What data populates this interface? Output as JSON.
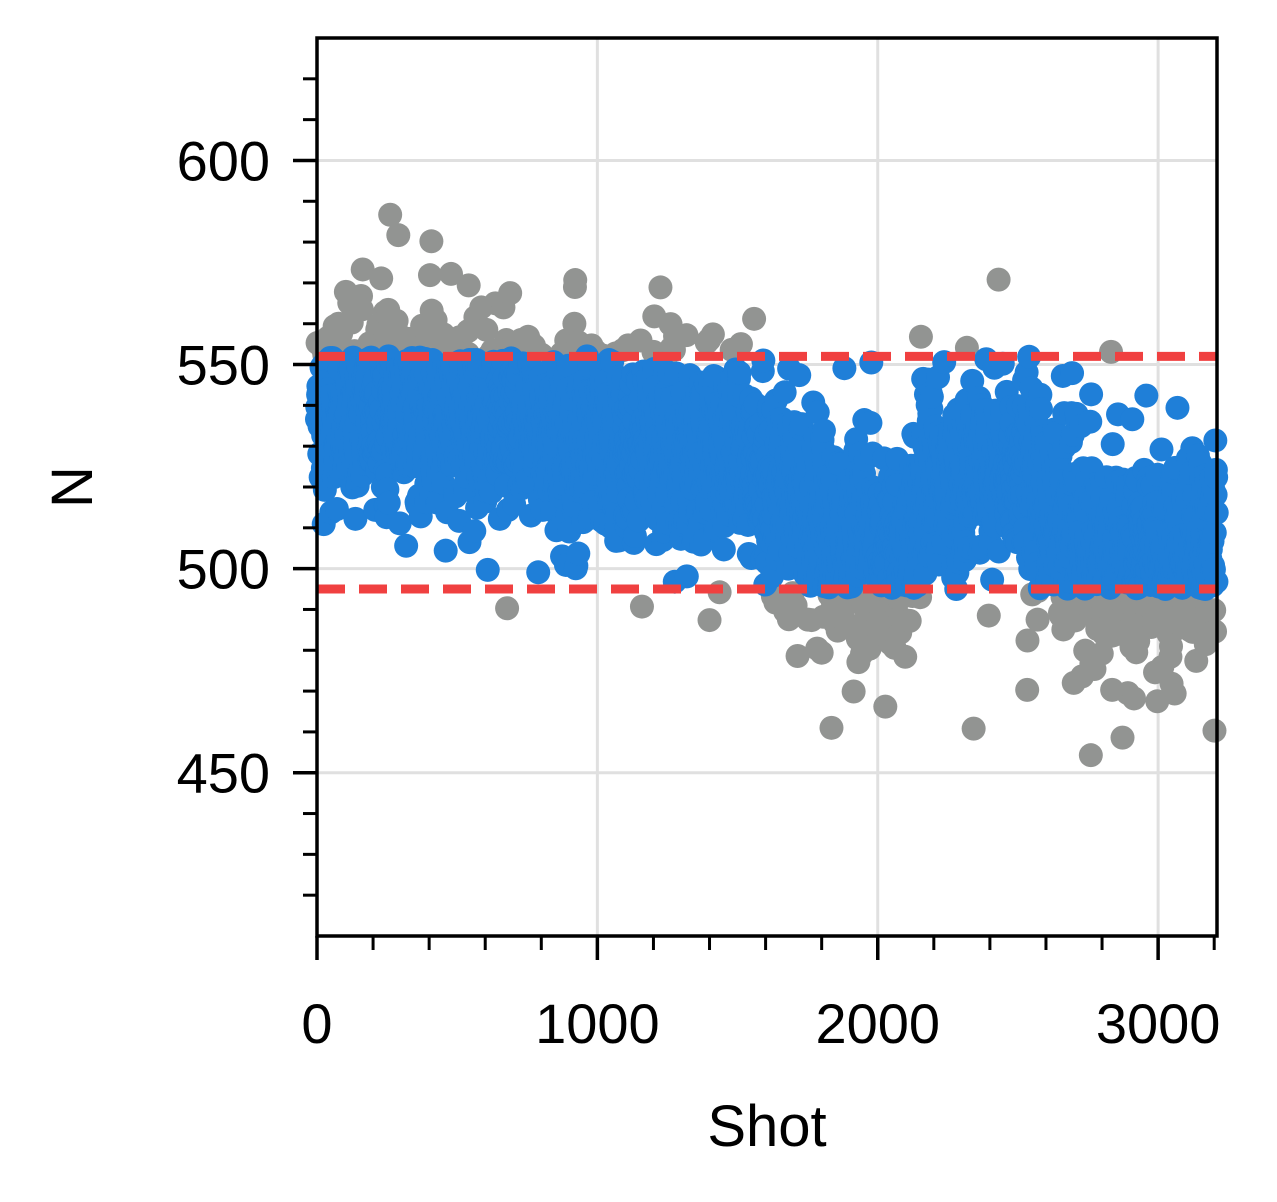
{
  "chart_data": {
    "type": "scatter",
    "title": "",
    "xlabel": "Shot",
    "ylabel": "N",
    "xlim": [
      0,
      3210
    ],
    "ylim": [
      410,
      630
    ],
    "x_ticks": [
      0,
      1000,
      2000,
      3000
    ],
    "x_tick_labels": [
      "0",
      "1000",
      "2000",
      "3000"
    ],
    "y_ticks": [
      450,
      500,
      550,
      600
    ],
    "y_tick_labels": [
      "450",
      "500",
      "550",
      "600"
    ],
    "grid": true,
    "legend": "none",
    "thresholds": {
      "upper": 552,
      "lower": 495,
      "style": "dashed",
      "color": "#f04040"
    },
    "colors": {
      "inside": "#1f7fd8",
      "outside": "#929492",
      "threshold": "#f04040",
      "grid": "#e0e0e0",
      "axis": "#000000"
    },
    "series": [
      {
        "role": "inside-thresholds",
        "color": "#1f7fd8",
        "x": [],
        "y": []
      },
      {
        "role": "outside-thresholds",
        "color": "#929492",
        "x": [],
        "y": []
      }
    ]
  }
}
